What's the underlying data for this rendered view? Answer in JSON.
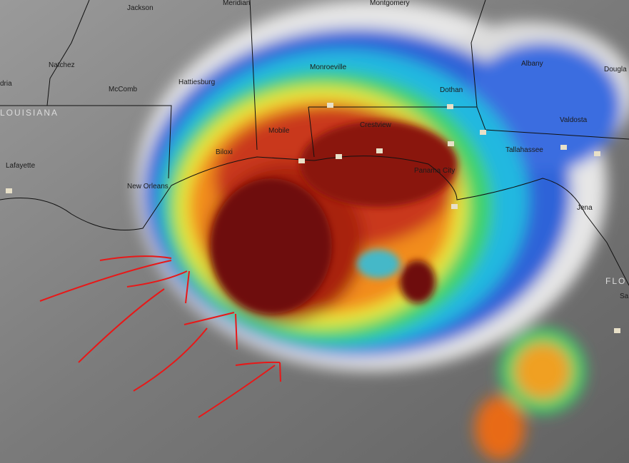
{
  "map": {
    "cities": [
      "Jackson",
      "Meridian",
      "Montgomery",
      "Natchez",
      "McComb",
      "Hattiesburg",
      "Monroeville",
      "Albany",
      "Dougla",
      "dria",
      "Dothan",
      "Valdosta",
      "Mobile",
      "Crestview",
      "Biloxi",
      "Tallahassee",
      "Panama City",
      "Lafayette",
      "New Orleans",
      "Jena",
      "Sa"
    ],
    "states": [
      "LOUISIANA",
      "FLO"
    ]
  }
}
